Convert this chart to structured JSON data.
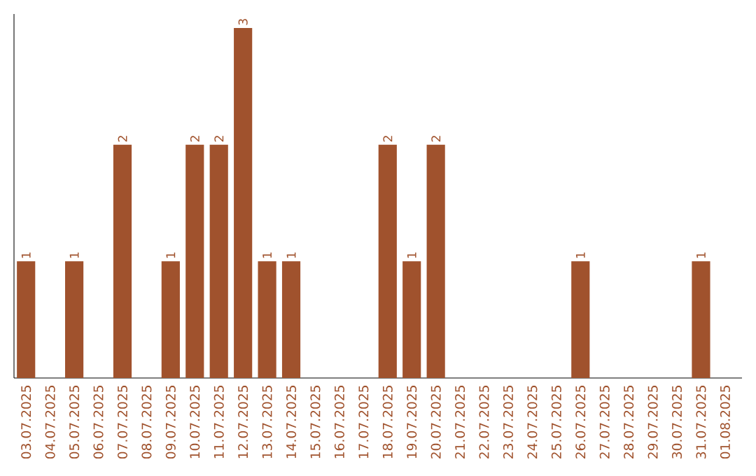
{
  "chart_data": {
    "type": "bar",
    "categories": [
      "03.07.2025",
      "04.07.2025",
      "05.07.2025",
      "06.07.2025",
      "07.07.2025",
      "08.07.2025",
      "09.07.2025",
      "10.07.2025",
      "11.07.2025",
      "12.07.2025",
      "13.07.2025",
      "14.07.2025",
      "15.07.2025",
      "16.07.2025",
      "17.07.2025",
      "18.07.2025",
      "19.07.2025",
      "20.07.2025",
      "21.07.2025",
      "22.07.2025",
      "23.07.2025",
      "24.07.2025",
      "25.07.2025",
      "26.07.2025",
      "27.07.2025",
      "28.07.2025",
      "29.07.2025",
      "30.07.2025",
      "31.07.2025",
      "01.08.2025"
    ],
    "values": [
      1,
      0,
      1,
      0,
      2,
      0,
      1,
      2,
      2,
      3,
      1,
      1,
      0,
      0,
      0,
      2,
      1,
      2,
      0,
      0,
      0,
      0,
      0,
      1,
      0,
      0,
      0,
      0,
      1,
      0
    ],
    "value_labels": [
      "1",
      null,
      "1",
      null,
      "2",
      null,
      "1",
      "2",
      "2",
      "3",
      "1",
      "1",
      null,
      null,
      null,
      "2",
      "1",
      "2",
      null,
      null,
      null,
      null,
      null,
      "1",
      null,
      null,
      null,
      null,
      "1",
      null
    ],
    "color": "#a0522d",
    "tick_labels": "x"
  }
}
